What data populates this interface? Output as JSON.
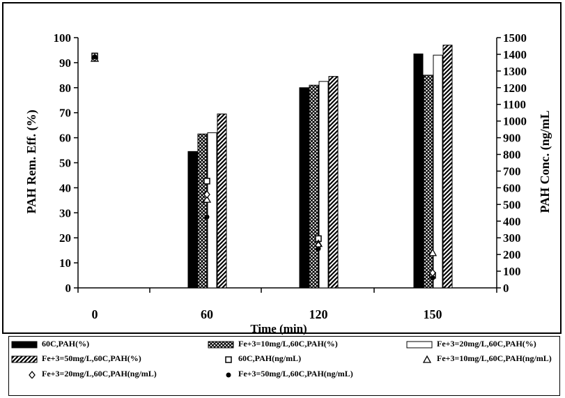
{
  "chart_data": {
    "type": "bar",
    "xlabel": "Time (min)",
    "ylabel_left": "PAH Rem. Eff. (%)",
    "ylabel_right": "PAH Conc. (ng/mL",
    "categories": [
      "0",
      "60",
      "120",
      "150"
    ],
    "ylim_left": [
      0,
      100
    ],
    "ylim_right": [
      0,
      1500
    ],
    "yticks_left": [
      "0",
      "10",
      "20",
      "30",
      "40",
      "50",
      "60",
      "70",
      "80",
      "90",
      "100"
    ],
    "yticks_right": [
      "0",
      "100",
      "200",
      "300",
      "400",
      "500",
      "600",
      "700",
      "800",
      "900",
      "1000",
      "1100",
      "1200",
      "1300",
      "1400",
      "1500"
    ],
    "grid": false,
    "legend_position": "bottom",
    "bar_series": [
      {
        "name": "60C,PAH(%)",
        "pattern": "solid",
        "values": [
          null,
          54.5,
          80,
          93.5
        ]
      },
      {
        "name": "Fe+3=10mg/L,60C,PAH(%)",
        "pattern": "crosshatch",
        "values": [
          null,
          61.5,
          81,
          85
        ]
      },
      {
        "name": "Fe+3=20mg/L,60C,PAH(%)",
        "pattern": "white",
        "values": [
          null,
          62,
          82.5,
          93
        ]
      },
      {
        "name": "Fe+3=50mg/L,60C,PAH(%)",
        "pattern": "diagonal",
        "values": [
          null,
          69.5,
          84.5,
          97
        ]
      }
    ],
    "point_series": [
      {
        "name": "60C,PAH(ng/mL)",
        "marker": "square",
        "values": [
          1390,
          640,
          295,
          75
        ]
      },
      {
        "name": "Fe+3=10mg/L,60C,PAH(ng/mL)",
        "marker": "triangle",
        "values": [
          1375,
          530,
          265,
          210
        ]
      },
      {
        "name": "Fe+3=20mg/L,60C,PAH(ng/mL)",
        "marker": "diamond",
        "values": [
          1380,
          560,
          255,
          90
        ]
      },
      {
        "name": "Fe+3=50mg/L,60C,PAH(ng/mL)",
        "marker": "dot",
        "values": [
          1385,
          425,
          235,
          60
        ]
      }
    ],
    "colors": {
      "ink": "#000000",
      "paper": "#ffffff"
    }
  }
}
